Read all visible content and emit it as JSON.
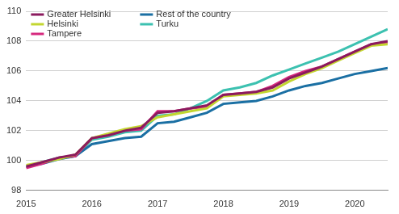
{
  "chart_data": {
    "type": "line",
    "x": [
      2015,
      2015.25,
      2015.5,
      2015.75,
      2016,
      2016.25,
      2016.5,
      2016.75,
      2017,
      2017.25,
      2017.5,
      2017.75,
      2018,
      2018.25,
      2018.5,
      2018.75,
      2019,
      2019.25,
      2019.5,
      2019.75,
      2020,
      2020.25,
      2020.5
    ],
    "series": [
      {
        "name": "Greater Helsinki",
        "color": "#8b1a5e",
        "values": [
          99.6,
          99.9,
          100.2,
          100.4,
          101.5,
          101.7,
          102.0,
          102.2,
          103.2,
          103.3,
          103.5,
          103.7,
          104.4,
          104.5,
          104.6,
          104.9,
          105.5,
          105.9,
          106.3,
          106.8,
          107.3,
          107.8,
          108.0
        ]
      },
      {
        "name": "Helsinki",
        "color": "#c3d630",
        "values": [
          99.7,
          99.9,
          100.1,
          100.4,
          101.5,
          101.8,
          102.1,
          102.3,
          102.9,
          103.1,
          103.3,
          103.5,
          104.3,
          104.4,
          104.5,
          104.7,
          105.3,
          105.8,
          106.2,
          106.7,
          107.2,
          107.7,
          107.8
        ]
      },
      {
        "name": "Tampere",
        "color": "#d6287e",
        "values": [
          99.5,
          99.8,
          100.2,
          100.3,
          101.5,
          101.7,
          102.0,
          102.1,
          103.3,
          103.3,
          103.5,
          103.6,
          104.4,
          104.5,
          104.6,
          105.0,
          105.6,
          106.0,
          106.3,
          106.8,
          107.3,
          107.8,
          107.9
        ]
      },
      {
        "name": "Rest of the country",
        "color": "#1a6fa3",
        "values": [
          99.6,
          99.8,
          100.1,
          100.3,
          101.1,
          101.3,
          101.5,
          101.6,
          102.5,
          102.6,
          102.9,
          103.2,
          103.8,
          103.9,
          104.0,
          104.3,
          104.7,
          105.0,
          105.2,
          105.5,
          105.8,
          106.0,
          106.2
        ]
      },
      {
        "name": "Turku",
        "color": "#3cc1b0",
        "values": [
          99.6,
          99.9,
          100.2,
          100.3,
          101.4,
          101.6,
          101.9,
          102.0,
          103.0,
          103.1,
          103.5,
          104.0,
          104.7,
          104.9,
          105.2,
          105.7,
          106.1,
          106.5,
          106.9,
          107.3,
          107.8,
          108.3,
          108.8
        ]
      }
    ],
    "xlim": [
      2015,
      2020.5
    ],
    "xticks": [
      2015,
      2016,
      2017,
      2018,
      2019,
      2020
    ],
    "ylim": [
      98,
      110
    ],
    "yticks": [
      98,
      100,
      102,
      104,
      106,
      108,
      110
    ],
    "grid": true,
    "legend": "top-left"
  }
}
